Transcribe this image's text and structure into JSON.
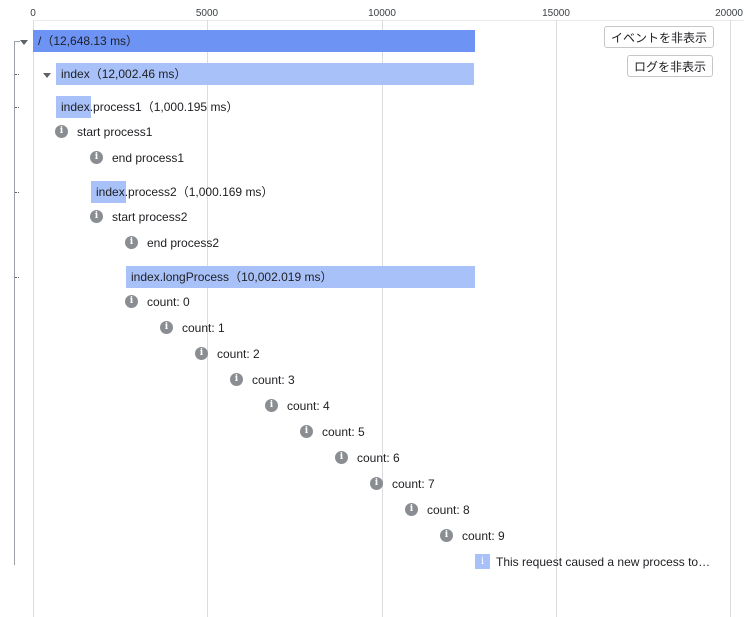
{
  "axis": {
    "ticks": [
      "0",
      "5000",
      "10000",
      "15000",
      "20000"
    ]
  },
  "buttons": {
    "hide_events": "イベントを非表示",
    "hide_logs": "ログを非表示"
  },
  "spans": [
    {
      "id": "root",
      "name": "/",
      "duration": "（12,648.13 ms）"
    },
    {
      "id": "index",
      "name": "index",
      "duration": "（12,002.46 ms）"
    },
    {
      "id": "process1",
      "name": "index.process1",
      "duration": "（1,000.195 ms）"
    },
    {
      "id": "process2",
      "name": "index.process2",
      "duration": "（1,000.169 ms）"
    },
    {
      "id": "longprocess",
      "name": "index.longProcess",
      "duration": "（10,002.019 ms）"
    }
  ],
  "logs": [
    "start process1",
    "end process1",
    "start process2",
    "end process2",
    "count: 0",
    "count: 1",
    "count: 2",
    "count: 3",
    "count: 4",
    "count: 5",
    "count: 6",
    "count: 7",
    "count: 8",
    "count: 9"
  ],
  "info_glyph": "i",
  "request_note": "This request caused a new process to…",
  "colors": {
    "root_bar": "#6d93f4",
    "span_bar": "#a8c1f8",
    "icon": "#8a8d91"
  },
  "icons": {
    "log": "info-icon",
    "request": "info-square-icon",
    "expand": "caret-down-icon"
  }
}
